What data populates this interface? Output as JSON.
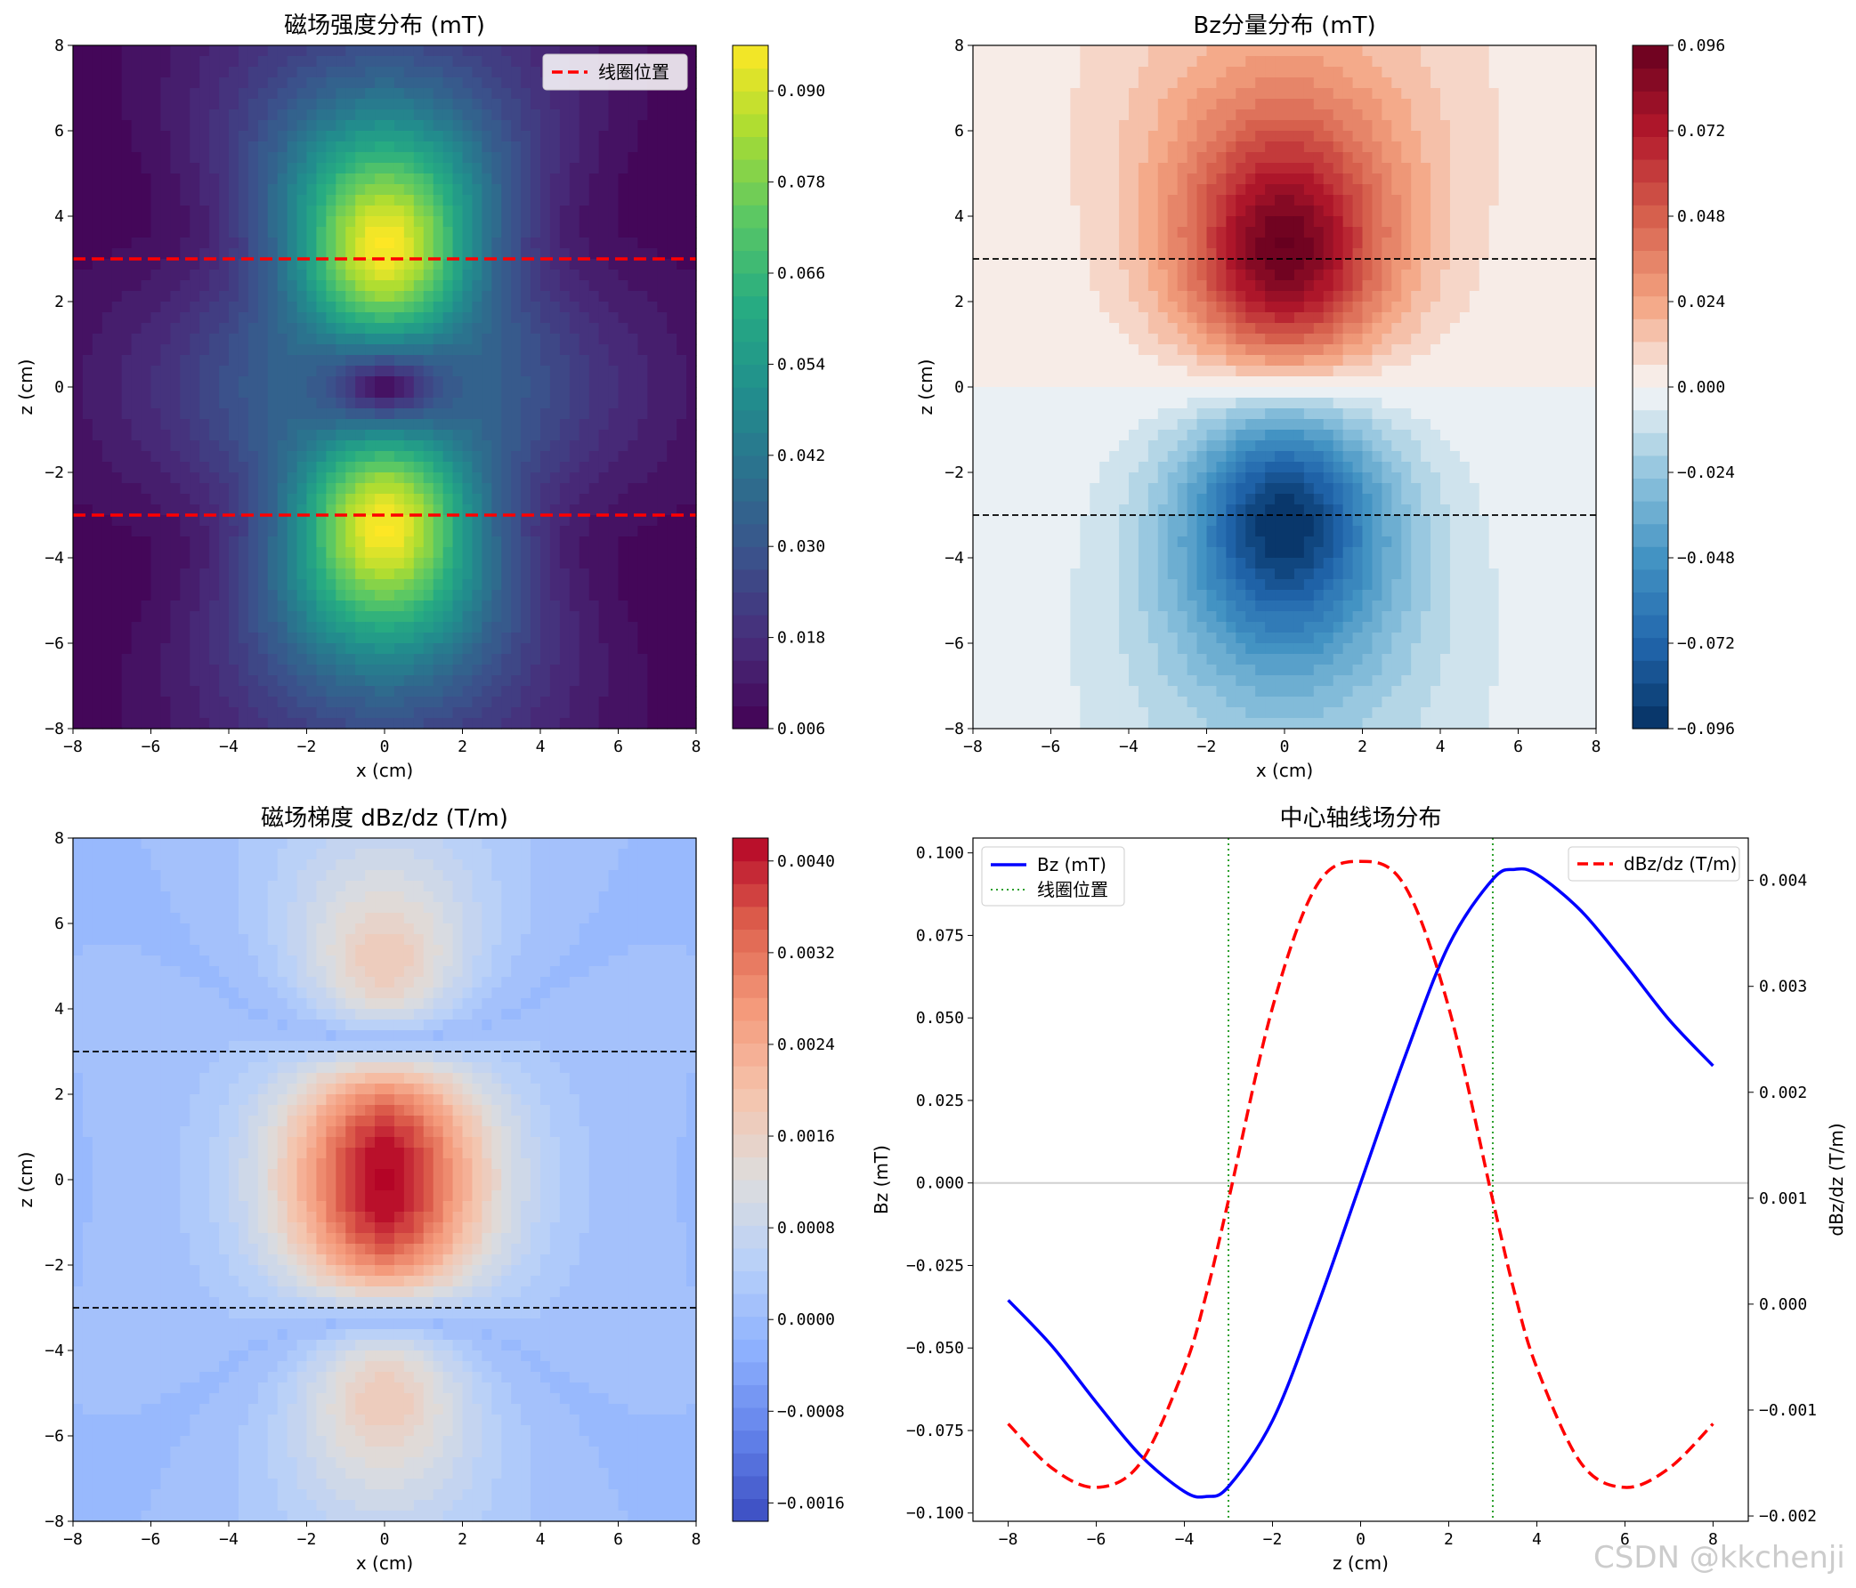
{
  "chart_data": [
    {
      "type": "heatmap",
      "title": "磁场强度分布 (mT)",
      "xlabel": "x (cm)",
      "ylabel": "z (cm)",
      "xlim": [
        -8,
        8
      ],
      "ylim": [
        -8,
        8
      ],
      "xticks": [
        "−8",
        "−6",
        "−4",
        "−2",
        "0",
        "2",
        "4",
        "6",
        "8"
      ],
      "yticks": [
        "−8",
        "−6",
        "−4",
        "−2",
        "0",
        "2",
        "4",
        "6",
        "8"
      ],
      "colormap": "viridis",
      "colorbar_range": [
        0.006,
        0.096
      ],
      "colorbar_ticks": [
        "0.006",
        "0.018",
        "0.030",
        "0.042",
        "0.054",
        "0.066",
        "0.078",
        "0.090"
      ],
      "coil_z": [
        3,
        -3
      ],
      "coil_line_color": "#ff0000",
      "legend": [
        "线圈位置"
      ],
      "legend_position": "top-right",
      "field": "|B|"
    },
    {
      "type": "heatmap",
      "title": "Bz分量分布 (mT)",
      "xlabel": "x (cm)",
      "ylabel": "z (cm)",
      "xlim": [
        -8,
        8
      ],
      "ylim": [
        -8,
        8
      ],
      "xticks": [
        "−8",
        "−6",
        "−4",
        "−2",
        "0",
        "2",
        "4",
        "6",
        "8"
      ],
      "yticks": [
        "−8",
        "−6",
        "−4",
        "−2",
        "0",
        "2",
        "4",
        "6",
        "8"
      ],
      "colormap": "RdBu_r",
      "colorbar_range": [
        -0.096,
        0.096
      ],
      "colorbar_ticks": [
        "−0.096",
        "−0.072",
        "−0.048",
        "−0.024",
        "0.000",
        "0.024",
        "0.048",
        "0.072",
        "0.096"
      ],
      "coil_z": [
        3,
        -3
      ],
      "coil_line_color": "#000000",
      "field": "Bz"
    },
    {
      "type": "heatmap",
      "title": "磁场梯度 dBz/dz (T/m)",
      "xlabel": "x (cm)",
      "ylabel": "z (cm)",
      "xlim": [
        -8,
        8
      ],
      "ylim": [
        -8,
        8
      ],
      "xticks": [
        "−8",
        "−6",
        "−4",
        "−2",
        "0",
        "2",
        "4",
        "6",
        "8"
      ],
      "yticks": [
        "−8",
        "−6",
        "−4",
        "−2",
        "0",
        "2",
        "4",
        "6",
        "8"
      ],
      "colormap": "coolwarm",
      "colorbar_range": [
        -0.00176,
        0.0042
      ],
      "colorbar_ticks": [
        "−0.0016",
        "−0.0008",
        "0.0000",
        "0.0008",
        "0.0016",
        "0.0024",
        "0.0032",
        "0.0040"
      ],
      "coil_z": [
        3,
        -3
      ],
      "coil_line_color": "#000000",
      "field": "dBz/dz"
    },
    {
      "type": "line",
      "title": "中心轴线场分布",
      "xlabel": "z (cm)",
      "ylabel": "Bz (mT)",
      "ylabel2": "dBz/dz (T/m)",
      "xlim": [
        -8.8,
        8.8
      ],
      "ylim": [
        -0.1025,
        0.1045
      ],
      "ylim2": [
        -0.00205,
        0.0044
      ],
      "xticks": [
        "−8",
        "−6",
        "−4",
        "−2",
        "0",
        "2",
        "4",
        "6",
        "8"
      ],
      "yticks": [
        "−0.100",
        "−0.075",
        "−0.050",
        "−0.025",
        "0.000",
        "0.025",
        "0.050",
        "0.075",
        "0.100"
      ],
      "yticks2": [
        "−0.002",
        "−0.001",
        "0.000",
        "0.001",
        "0.002",
        "0.003",
        "0.004"
      ],
      "x": [
        -8,
        -7,
        -6,
        -5,
        -4,
        -3.5,
        -3,
        -2,
        -1,
        0,
        1,
        2,
        3,
        3.5,
        4,
        5,
        6,
        7,
        8
      ],
      "series": [
        {
          "name": "Bz (mT)",
          "axis": "left",
          "color": "#0000ff",
          "style": "solid",
          "values": [
            -0.0355,
            -0.0495,
            -0.0665,
            -0.0825,
            -0.0935,
            -0.095,
            -0.092,
            -0.072,
            -0.038,
            0.0,
            0.038,
            0.072,
            0.092,
            0.095,
            0.0935,
            0.0825,
            0.0665,
            0.0495,
            0.0355
          ]
        },
        {
          "name": "dBz/dz (T/m)",
          "axis": "right",
          "color": "#ff0000",
          "style": "dashed",
          "values": [
            -0.00113,
            -0.00155,
            -0.00173,
            -0.0015,
            -0.0006,
            0.0001,
            0.00098,
            0.0028,
            0.00395,
            0.00418,
            0.00395,
            0.0028,
            0.00098,
            0.0001,
            -0.0006,
            -0.0015,
            -0.00173,
            -0.00155,
            -0.00113
          ]
        }
      ],
      "coil_z": [
        -3,
        3
      ],
      "coil_label": "线圈位置",
      "coil_color": "#2ca02c",
      "legend_left_position": "upper-left",
      "legend_right_position": "upper-right"
    }
  ],
  "watermark": "CSDN @kkchenji"
}
